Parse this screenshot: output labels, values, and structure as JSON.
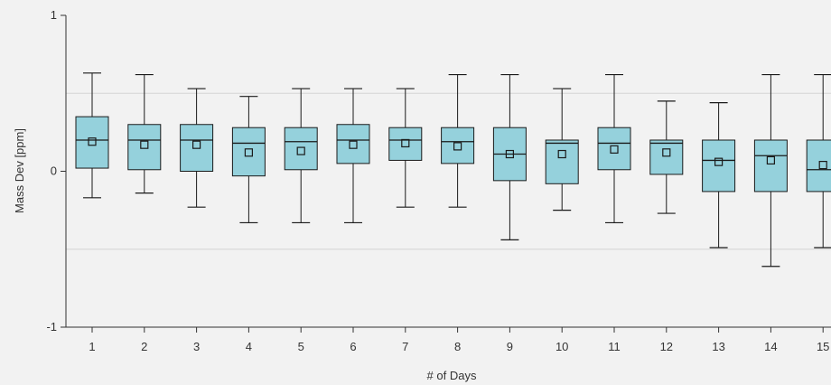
{
  "chart_data": {
    "type": "box",
    "xlabel": "# of Days",
    "ylabel": "Mass Dev [ppm]",
    "ylim": [
      -1,
      1
    ],
    "yticks": [
      -1,
      0,
      1
    ],
    "ytick_labels": [
      "-1",
      "0",
      "1"
    ],
    "grid": "horizontal",
    "gridlines": [
      -0.5,
      0.5
    ],
    "colors": {
      "box_fill": "#95d1dc",
      "stroke": "#1a1a1a",
      "grid": "#d4d4d4",
      "background": "#f2f2f2"
    },
    "categories": [
      "1",
      "2",
      "3",
      "4",
      "5",
      "6",
      "7",
      "8",
      "9",
      "10",
      "11",
      "12",
      "13",
      "14",
      "15"
    ],
    "boxes": [
      {
        "label": "1",
        "whisker_low": -0.17,
        "q1": 0.02,
        "median": 0.2,
        "q3": 0.35,
        "whisker_high": 0.63,
        "mean": 0.19
      },
      {
        "label": "2",
        "whisker_low": -0.14,
        "q1": 0.01,
        "median": 0.2,
        "q3": 0.3,
        "whisker_high": 0.62,
        "mean": 0.17
      },
      {
        "label": "3",
        "whisker_low": -0.23,
        "q1": 0.0,
        "median": 0.2,
        "q3": 0.3,
        "whisker_high": 0.53,
        "mean": 0.17
      },
      {
        "label": "4",
        "whisker_low": -0.33,
        "q1": -0.03,
        "median": 0.18,
        "q3": 0.28,
        "whisker_high": 0.48,
        "mean": 0.12
      },
      {
        "label": "5",
        "whisker_low": -0.33,
        "q1": 0.01,
        "median": 0.19,
        "q3": 0.28,
        "whisker_high": 0.53,
        "mean": 0.13
      },
      {
        "label": "6",
        "whisker_low": -0.33,
        "q1": 0.05,
        "median": 0.2,
        "q3": 0.3,
        "whisker_high": 0.53,
        "mean": 0.17
      },
      {
        "label": "7",
        "whisker_low": -0.23,
        "q1": 0.07,
        "median": 0.2,
        "q3": 0.28,
        "whisker_high": 0.53,
        "mean": 0.18
      },
      {
        "label": "8",
        "whisker_low": -0.23,
        "q1": 0.05,
        "median": 0.19,
        "q3": 0.28,
        "whisker_high": 0.62,
        "mean": 0.16
      },
      {
        "label": "9",
        "whisker_low": -0.44,
        "q1": -0.06,
        "median": 0.11,
        "q3": 0.28,
        "whisker_high": 0.62,
        "mean": 0.11
      },
      {
        "label": "10",
        "whisker_low": -0.25,
        "q1": -0.08,
        "median": 0.18,
        "q3": 0.2,
        "whisker_high": 0.53,
        "mean": 0.11
      },
      {
        "label": "11",
        "whisker_low": -0.33,
        "q1": 0.01,
        "median": 0.18,
        "q3": 0.28,
        "whisker_high": 0.62,
        "mean": 0.14
      },
      {
        "label": "12",
        "whisker_low": -0.27,
        "q1": -0.02,
        "median": 0.18,
        "q3": 0.2,
        "whisker_high": 0.45,
        "mean": 0.12
      },
      {
        "label": "13",
        "whisker_low": -0.49,
        "q1": -0.13,
        "median": 0.07,
        "q3": 0.2,
        "whisker_high": 0.44,
        "mean": 0.06
      },
      {
        "label": "14",
        "whisker_low": -0.61,
        "q1": -0.13,
        "median": 0.1,
        "q3": 0.2,
        "whisker_high": 0.62,
        "mean": 0.07
      },
      {
        "label": "15",
        "whisker_low": -0.49,
        "q1": -0.13,
        "median": 0.01,
        "q3": 0.2,
        "whisker_high": 0.62,
        "mean": 0.04
      }
    ]
  }
}
